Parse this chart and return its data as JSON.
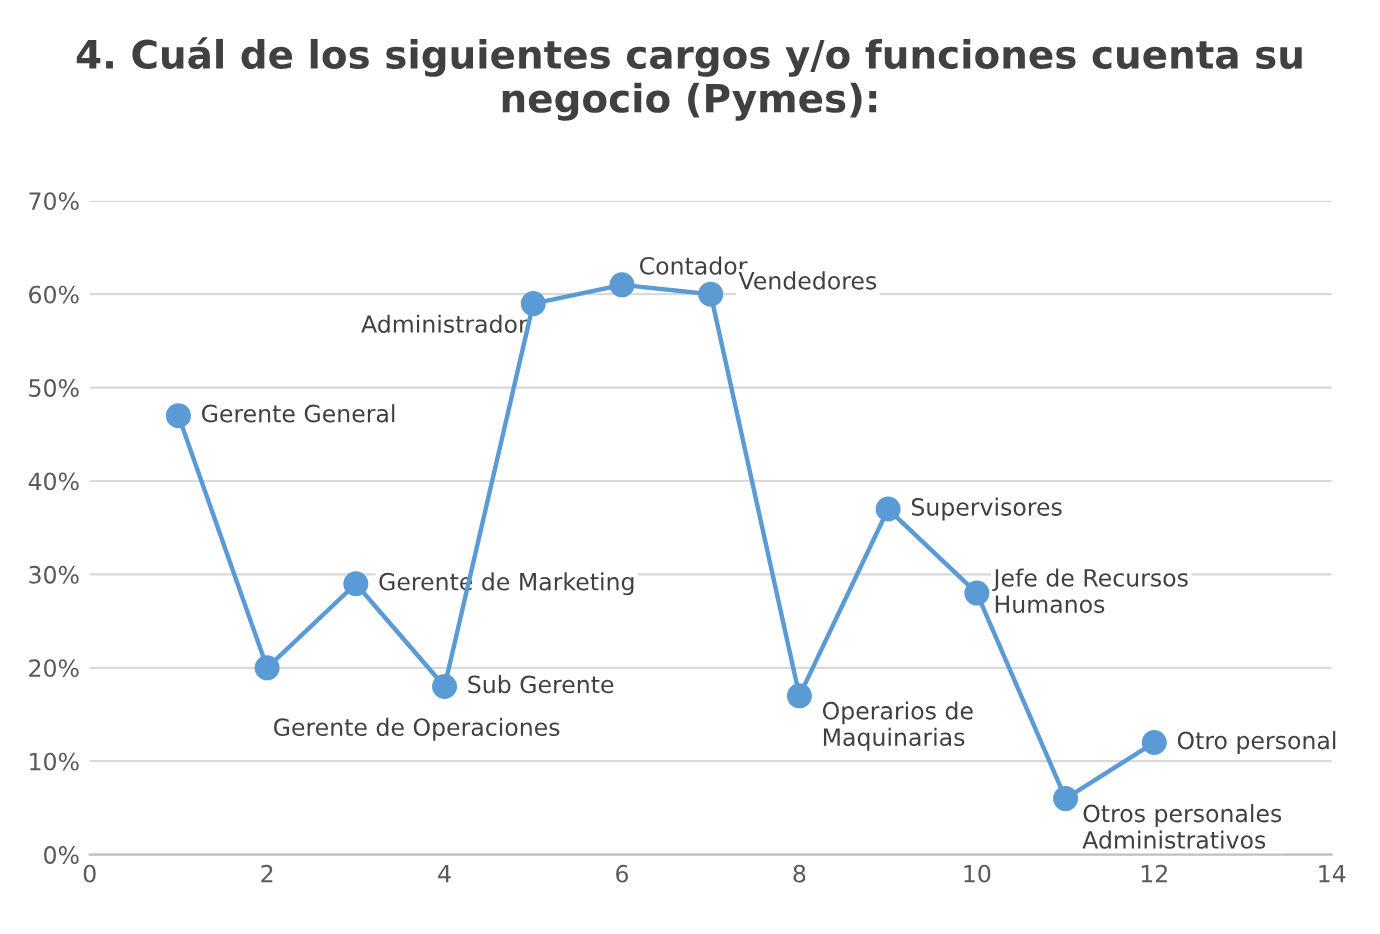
{
  "chart_data": {
    "type": "line",
    "title": "4. Cuál de los siguientes cargos y/o funciones cuenta su negocio (Pymes):",
    "x": [
      1,
      2,
      3,
      4,
      5,
      6,
      7,
      8,
      9,
      10,
      11,
      12
    ],
    "series": [
      {
        "color": "#5b9bd5",
        "values": [
          47,
          20,
          29,
          18,
          59,
          61,
          60,
          17,
          37,
          28,
          6,
          12
        ]
      }
    ],
    "xlim": [
      0,
      14
    ],
    "xticks": [
      0,
      2,
      4,
      6,
      8,
      10,
      12,
      14
    ],
    "ylim": [
      0,
      70
    ],
    "yticks": [
      {
        "value": 0,
        "label": "0%"
      },
      {
        "value": 10,
        "label": "10%"
      },
      {
        "value": 20,
        "label": "20%"
      },
      {
        "value": 30,
        "label": "30%"
      },
      {
        "value": 40,
        "label": "40%"
      },
      {
        "value": 50,
        "label": "50%"
      },
      {
        "value": 60,
        "label": "60%"
      },
      {
        "value": 70,
        "label": "70%"
      }
    ],
    "grid": "y",
    "marker": "circle",
    "line_style": "solid",
    "annotations": [
      {
        "text": "Gerente General",
        "x": 1,
        "y": 47
      },
      {
        "text": "Gerente de Operaciones",
        "x": 2,
        "y": 20
      },
      {
        "text": "Gerente de Marketing",
        "x": 3,
        "y": 29
      },
      {
        "text": "Sub Gerente",
        "x": 4,
        "y": 18
      },
      {
        "text": "Administrador",
        "x": 5,
        "y": 59
      },
      {
        "text": "Contador",
        "x": 6,
        "y": 61
      },
      {
        "text": "Vendedores",
        "x": 7,
        "y": 60
      },
      {
        "text": "Operarios de\nMaquinarias",
        "x": 8,
        "y": 17
      },
      {
        "text": "Supervisores",
        "x": 9,
        "y": 37
      },
      {
        "text": "Jefe de Recursos\nHumanos",
        "x": 10,
        "y": 28
      },
      {
        "text": "Otros personales\nAdministrativos",
        "x": 11,
        "y": 6
      },
      {
        "text": "Otro personal",
        "x": 12,
        "y": 12
      }
    ]
  }
}
